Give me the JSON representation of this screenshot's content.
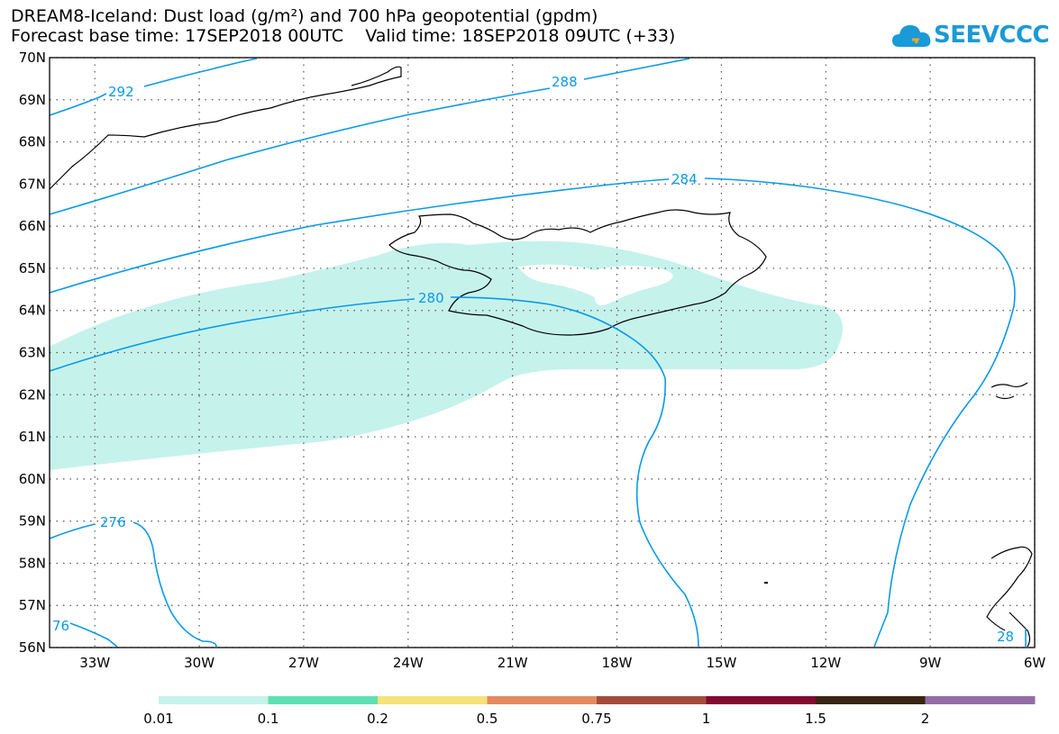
{
  "title_line1": "DREAM8-Iceland: Dust load (g/m²) and 700 hPa geopotential (gpdm)",
  "title_line2": "Forecast base time: 17SEP2018 00UTC    Valid time: 18SEP2018 09UTC (+33)",
  "logo_text": "SEEVCCC",
  "map": {
    "lat_labels": [
      "70N",
      "69N",
      "68N",
      "67N",
      "66N",
      "65N",
      "64N",
      "63N",
      "62N",
      "61N",
      "60N",
      "59N",
      "58N",
      "57N",
      "56N"
    ],
    "lon_labels": [
      "33W",
      "30W",
      "27W",
      "24W",
      "21W",
      "18W",
      "15W",
      "12W",
      "9W",
      "6W"
    ],
    "contour_labels": [
      "292",
      "288",
      "284",
      "280",
      "276",
      "76",
      "28"
    ],
    "dust_fill_color": "#c6f2ec",
    "contour_color": "#0a9ae8",
    "grid": true
  },
  "colorbar": {
    "colors": [
      "#c6f2ec",
      "#5fe0b4",
      "#f5e27a",
      "#e38a62",
      "#a34c3c",
      "#820a32",
      "#3a2414",
      "#936ca6"
    ],
    "tick_labels": [
      "0.01",
      "0.1",
      "0.2",
      "0.5",
      "0.75",
      "1",
      "1.5",
      "2"
    ]
  }
}
